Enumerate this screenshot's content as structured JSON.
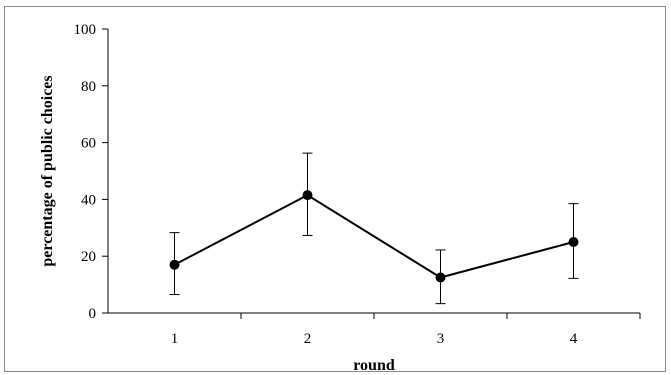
{
  "chart_data": {
    "type": "line",
    "title": "",
    "xlabel": "round",
    "ylabel": "percentage of public choices",
    "categories": [
      "1",
      "2",
      "3",
      "4"
    ],
    "series": [
      {
        "values": [
          17,
          41.5,
          12.5,
          25
        ],
        "error_upper": [
          28.3,
          56.3,
          22.2,
          38.5
        ],
        "error_lower": [
          6.5,
          27.3,
          3.3,
          12.2
        ]
      }
    ],
    "ylim": [
      0,
      100
    ],
    "yticks": [
      "0",
      "20",
      "40",
      "60",
      "80",
      "100"
    ],
    "grid": false,
    "legend": "none",
    "colors": {
      "line": "#000000",
      "marker": "#000000",
      "axis": "#000000"
    }
  }
}
